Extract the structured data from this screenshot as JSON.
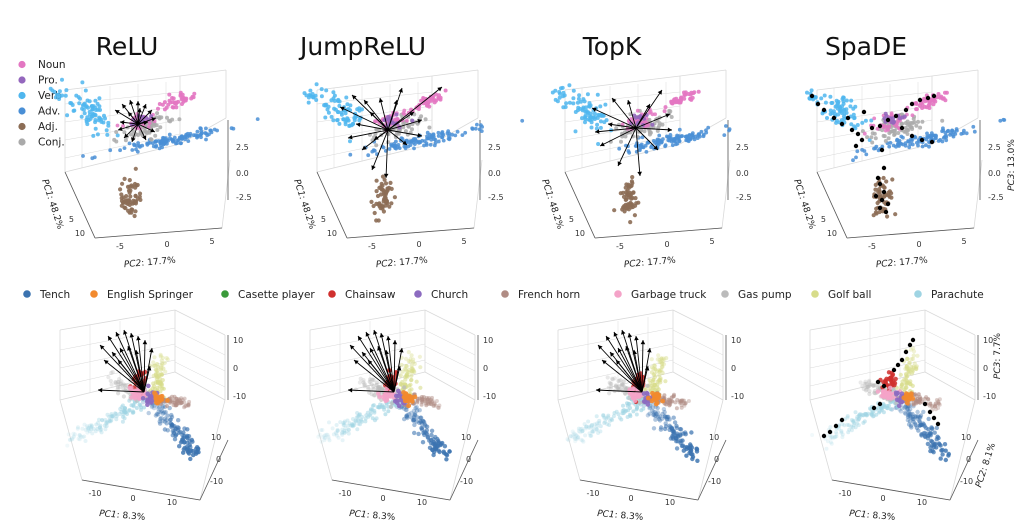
{
  "chart_data": {
    "type": "scatter",
    "panels": [
      "ReLU",
      "JumpReLU",
      "TopK",
      "SpaDE"
    ],
    "top_row": {
      "legend": [
        {
          "name": "Noun",
          "color": "#e377c2"
        },
        {
          "name": "Pro.",
          "color": "#9467bd"
        },
        {
          "name": "Verb",
          "color": "#4fb6ee"
        },
        {
          "name": "Adv.",
          "color": "#4a8fd6"
        },
        {
          "name": "Adj.",
          "color": "#8c6d55"
        },
        {
          "name": "Conj.",
          "color": "#aaaaaa"
        }
      ],
      "xlabel_italic": "PC2",
      "xlabel_value": ": 17.7%",
      "ylabel_italic": "PC1",
      "ylabel_value": ": 48.2%",
      "zlabel_italic": "PC3",
      "zlabel_value": ": 13.0%",
      "x_ticks": [
        "-5",
        "0",
        "5"
      ],
      "y_ticks": [
        "5",
        "10"
      ],
      "z_ticks": [
        "2.5",
        "0.0",
        "-2.5"
      ]
    },
    "bottom_row": {
      "legend": [
        {
          "name": "Tench",
          "color": "#3b73b0"
        },
        {
          "name": "English Springer",
          "color": "#f28a2e"
        },
        {
          "name": "Casette player",
          "color": "#3a9a3a"
        },
        {
          "name": "Chainsaw",
          "color": "#d0302e"
        },
        {
          "name": "Church",
          "color": "#8c6bc0"
        },
        {
          "name": "French horn",
          "color": "#b08c84"
        },
        {
          "name": "Garbage truck",
          "color": "#f4a3c8"
        },
        {
          "name": "Gas pump",
          "color": "#bbbbbb"
        },
        {
          "name": "Golf ball",
          "color": "#d7dc8a"
        },
        {
          "name": "Parachute",
          "color": "#9fd4e3"
        }
      ],
      "xlabel_italic": "PC1",
      "xlabel_value": ": 8.3%",
      "ylabel_italic": "PC2",
      "ylabel_value": ": 8.1%",
      "zlabel_italic": "PC3",
      "zlabel_value": ": 7.7%",
      "x_ticks": [
        "-10",
        "0",
        "10"
      ],
      "y_ticks": [
        "10",
        "0",
        "-10"
      ],
      "z_ticks": [
        "10",
        "0",
        "-10"
      ]
    }
  },
  "colors": {
    "arrows": "#000000",
    "dictionary_points": "#000000"
  }
}
